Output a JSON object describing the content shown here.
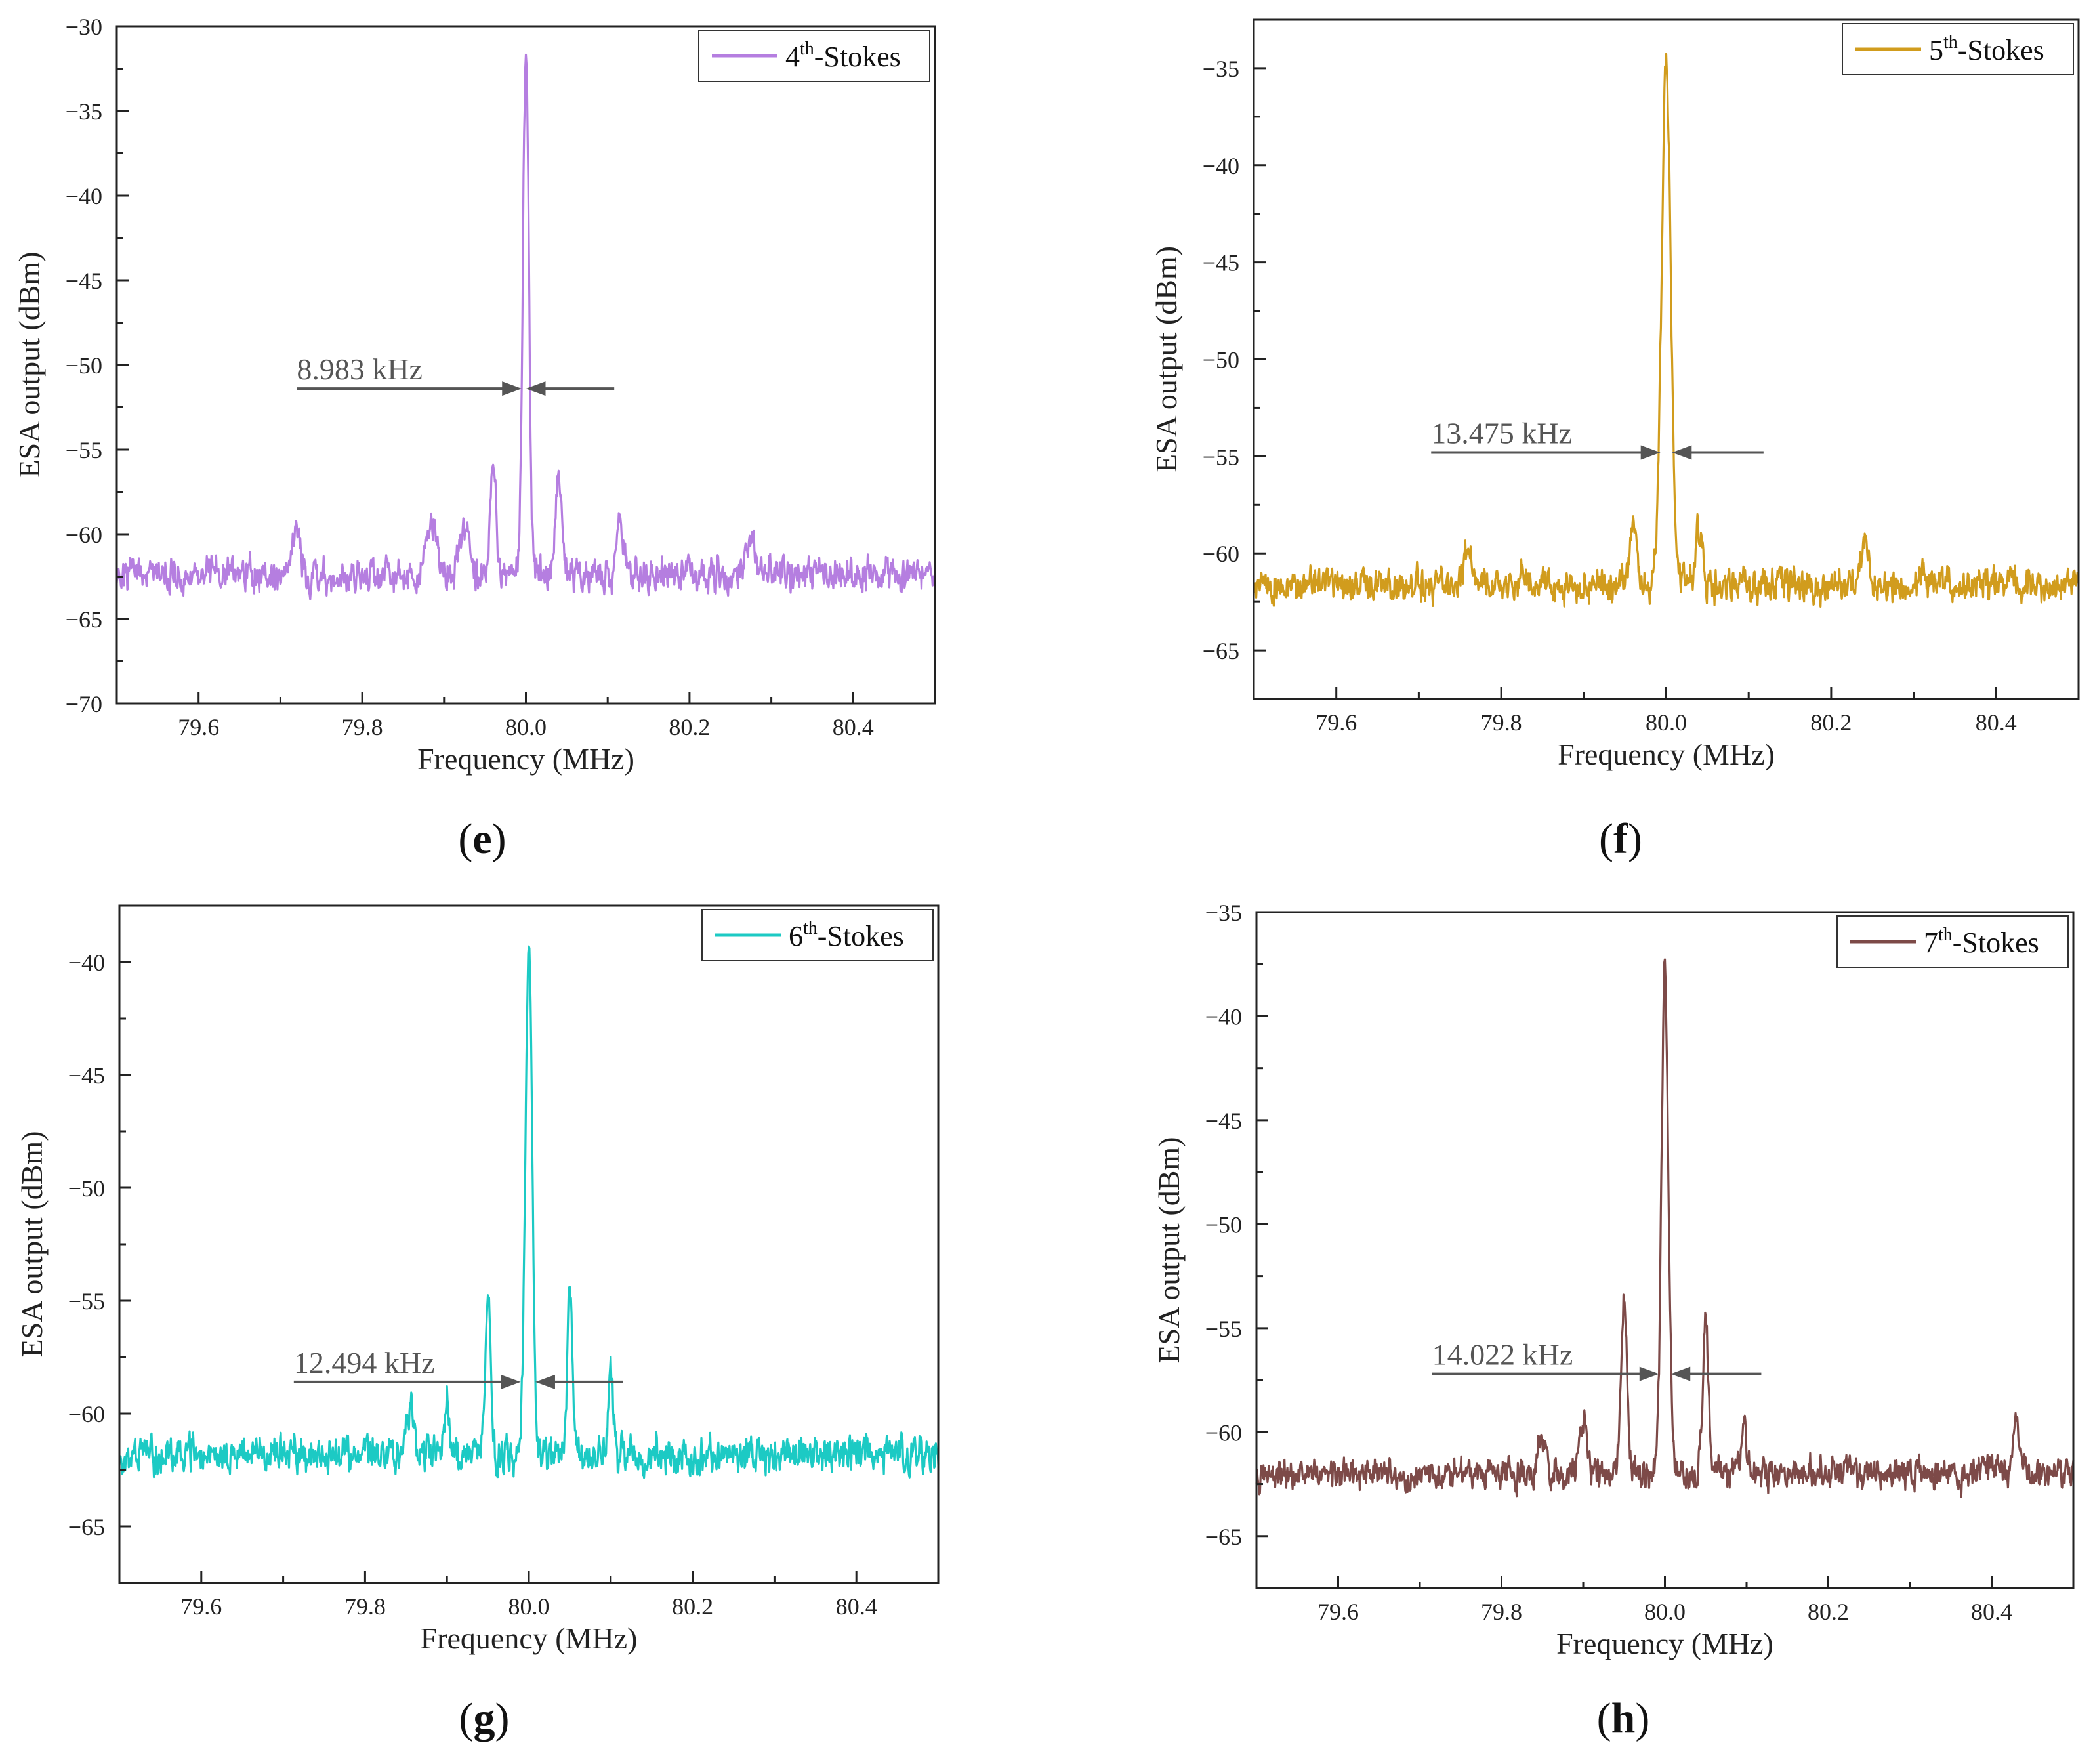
{
  "figure": {
    "axis_stroke": "#222222",
    "annotation_color": "#555555"
  },
  "chart_data": [
    {
      "type": "line",
      "panel_label": "e",
      "xlabel": "Frequency (MHz)",
      "ylabel": "ESA output (dBm)",
      "xlim": [
        79.5,
        80.5
      ],
      "ylim": [
        -70,
        -30
      ],
      "xticks": [
        79.6,
        79.8,
        80.0,
        80.2,
        80.4
      ],
      "xtick_labels": [
        "79.6",
        "79.8",
        "80.0",
        "80.2",
        "80.4"
      ],
      "yticks": [
        -30,
        -35,
        -40,
        -45,
        -50,
        -55,
        -60,
        -65,
        -70
      ],
      "ytick_labels": [
        "−30",
        "−35",
        "−40",
        "−45",
        "−50",
        "−55",
        "−60",
        "−65",
        "−70"
      ],
      "legend": {
        "label_num": "4",
        "label_sup": "th",
        "label_rest": "-Stokes",
        "position": "top-right"
      },
      "series": [
        {
          "name": "4th-Stokes",
          "color": "#b57ee0",
          "baseline": -62.4,
          "noise": 0.9,
          "seed": 11,
          "peaks": [
            {
              "x": 80.0,
              "y": -31.2,
              "width": 0.0036
            },
            {
              "x": 79.96,
              "y": -55.2,
              "width": 0.0035
            },
            {
              "x": 80.04,
              "y": -56.0,
              "width": 0.0035
            },
            {
              "x": 79.72,
              "y": -59.2,
              "width": 0.004
            },
            {
              "x": 79.885,
              "y": -59.0,
              "width": 0.006
            },
            {
              "x": 79.925,
              "y": -60.0,
              "width": 0.006
            },
            {
              "x": 80.115,
              "y": -59.0,
              "width": 0.004
            },
            {
              "x": 80.275,
              "y": -60.2,
              "width": 0.005
            }
          ]
        }
      ],
      "annotation": {
        "text": "8.983 kHz",
        "y": -51.4,
        "left_x": 79.72,
        "left_end": 79.995,
        "right_start": 80.0,
        "right_x": 80.108
      }
    },
    {
      "type": "line",
      "panel_label": "f",
      "xlabel": "Frequency (MHz)",
      "ylabel": "ESA output (dBm)",
      "xlim": [
        79.5,
        80.5
      ],
      "ylim": [
        -67.5,
        -32.5
      ],
      "xticks": [
        79.6,
        79.8,
        80.0,
        80.2,
        80.4
      ],
      "xtick_labels": [
        "79.6",
        "79.8",
        "80.0",
        "80.2",
        "80.4"
      ],
      "yticks": [
        -35,
        -40,
        -45,
        -50,
        -55,
        -60,
        -65
      ],
      "ytick_labels": [
        "−35",
        "−40",
        "−45",
        "−50",
        "−55",
        "−60",
        "−65"
      ],
      "legend": {
        "label_num": "5",
        "label_sup": "th",
        "label_rest": "-Stokes",
        "position": "top-right"
      },
      "series": [
        {
          "name": "5th-Stokes",
          "color": "#d19c1d",
          "baseline": -61.6,
          "noise": 0.8,
          "seed": 23,
          "peaks": [
            {
              "x": 80.0,
              "y": -34.8,
              "width": 0.0055
            },
            {
              "x": 79.96,
              "y": -58.6,
              "width": 0.004
            },
            {
              "x": 80.04,
              "y": -58.6,
              "width": 0.004
            },
            {
              "x": 79.76,
              "y": -59.4,
              "width": 0.005
            },
            {
              "x": 80.24,
              "y": -59.4,
              "width": 0.005
            }
          ]
        }
      ],
      "annotation": {
        "text": "13.475 kHz",
        "y": -54.8,
        "left_x": 79.715,
        "left_end": 79.993,
        "right_start": 80.007,
        "right_x": 80.118
      }
    },
    {
      "type": "line",
      "panel_label": "g",
      "xlabel": "Frequency (MHz)",
      "ylabel": "ESA output (dBm)",
      "xlim": [
        79.5,
        80.5
      ],
      "ylim": [
        -67.5,
        -37.5
      ],
      "xticks": [
        79.6,
        79.8,
        80.0,
        80.2,
        80.4
      ],
      "xtick_labels": [
        "79.6",
        "79.8",
        "80.0",
        "80.2",
        "80.4"
      ],
      "yticks": [
        -40,
        -45,
        -50,
        -55,
        -60,
        -65
      ],
      "ytick_labels": [
        "−40",
        "−45",
        "−50",
        "−55",
        "−60",
        "−65"
      ],
      "legend": {
        "label_num": "6",
        "label_sup": "th",
        "label_rest": "-Stokes",
        "position": "top-right"
      },
      "series": [
        {
          "name": "6th-Stokes",
          "color": "#1ccac4",
          "baseline": -61.8,
          "noise": 0.75,
          "seed": 37,
          "peaks": [
            {
              "x": 80.0,
              "y": -39.4,
              "width": 0.0042
            },
            {
              "x": 79.95,
              "y": -54.5,
              "width": 0.0032
            },
            {
              "x": 80.05,
              "y": -54.8,
              "width": 0.0032
            },
            {
              "x": 79.9,
              "y": -59.2,
              "width": 0.003
            },
            {
              "x": 80.1,
              "y": -58.6,
              "width": 0.003
            },
            {
              "x": 79.855,
              "y": -59.6,
              "width": 0.004
            }
          ]
        }
      ],
      "annotation": {
        "text": "12.494 kHz",
        "y": -58.6,
        "left_x": 79.713,
        "left_end": 79.99,
        "right_start": 80.008,
        "right_x": 80.115
      }
    },
    {
      "type": "line",
      "panel_label": "h",
      "xlabel": "Frequency (MHz)",
      "ylabel": "ESA output (dBm)",
      "xlim": [
        79.5,
        80.5
      ],
      "ylim": [
        -67.5,
        -35
      ],
      "xticks": [
        79.6,
        79.8,
        80.0,
        80.2,
        80.4
      ],
      "xtick_labels": [
        "79.6",
        "79.8",
        "80.0",
        "80.2",
        "80.4"
      ],
      "yticks": [
        -35,
        -40,
        -45,
        -50,
        -55,
        -60,
        -65
      ],
      "ytick_labels": [
        "−35",
        "−40",
        "−45",
        "−50",
        "−55",
        "−60",
        "−65"
      ],
      "legend": {
        "label_num": "7",
        "label_sup": "th",
        "label_rest": "-Stokes",
        "position": "top-right"
      },
      "series": [
        {
          "name": "7th-Stokes",
          "color": "#7d4a48",
          "baseline": -62.0,
          "noise": 0.7,
          "seed": 53,
          "peaks": [
            {
              "x": 80.0,
              "y": -37.8,
              "width": 0.0042
            },
            {
              "x": 79.95,
              "y": -53.6,
              "width": 0.0035
            },
            {
              "x": 80.05,
              "y": -54.9,
              "width": 0.0035
            },
            {
              "x": 79.9,
              "y": -59.3,
              "width": 0.004
            },
            {
              "x": 80.097,
              "y": -59.5,
              "width": 0.003
            },
            {
              "x": 80.43,
              "y": -59.8,
              "width": 0.004
            },
            {
              "x": 79.85,
              "y": -60.4,
              "width": 0.005
            }
          ]
        }
      ],
      "annotation": {
        "text": "14.022 kHz",
        "y": -57.2,
        "left_x": 79.715,
        "left_end": 79.993,
        "right_start": 80.007,
        "right_x": 80.118
      }
    }
  ]
}
